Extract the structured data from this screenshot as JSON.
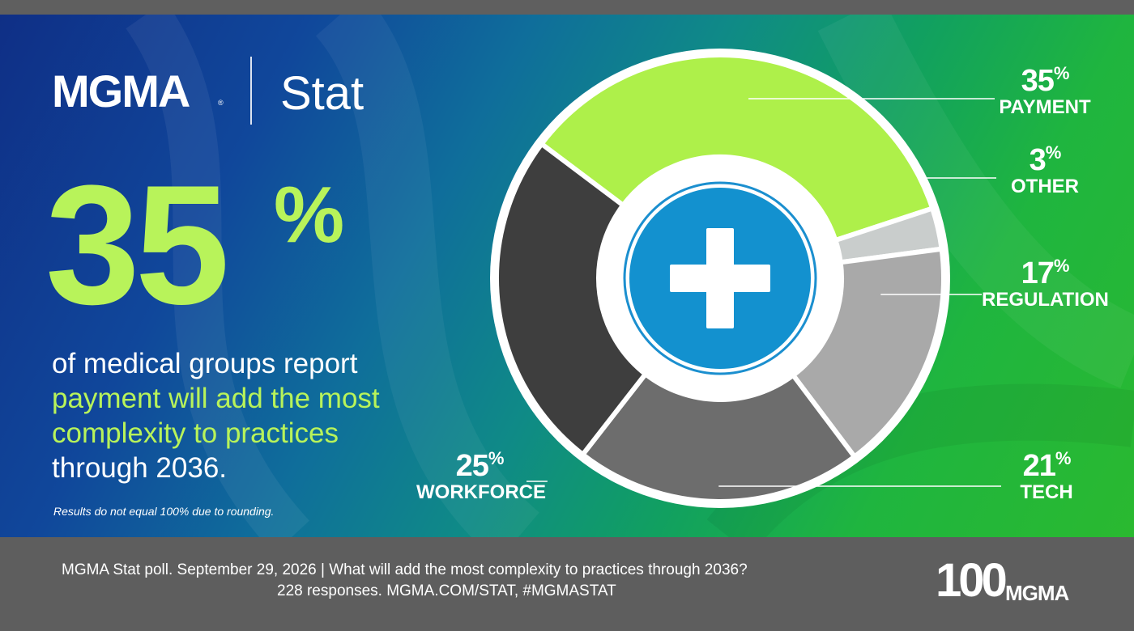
{
  "brand": {
    "logo": "MGMA",
    "registered": "®",
    "product": "Stat"
  },
  "headline": {
    "number": "35",
    "percent": "%"
  },
  "description": {
    "line1": "of medical groups report",
    "line2": "payment will add the most",
    "line3": "complexity to practices",
    "line4": "through 2036."
  },
  "note": "Results do not equal 100% due to rounding.",
  "footer": {
    "line1": "MGMA Stat poll. September 29, 2026  |  What will add the most complexity to practices through 2036?",
    "line2": "228 responses. MGMA.COM/STAT, #MGMASTAT",
    "logo_number": "100",
    "logo_text": "MGMA"
  },
  "chart_data": {
    "type": "pie",
    "center_icon": "plus-icon",
    "slices": [
      {
        "label": "PAYMENT",
        "value": 35,
        "display": "35",
        "color": "#aef04a"
      },
      {
        "label": "OTHER",
        "value": 3,
        "display": "3",
        "color": "#c9cdcc"
      },
      {
        "label": "REGULATION",
        "value": 17,
        "display": "17",
        "color": "#a9a9a9"
      },
      {
        "label": "TECH",
        "value": 21,
        "display": "21",
        "color": "#6d6d6d"
      },
      {
        "label": "WORKFORCE",
        "value": 25,
        "display": "25",
        "color": "#3e3e3e"
      }
    ],
    "percent_sign": "%"
  }
}
